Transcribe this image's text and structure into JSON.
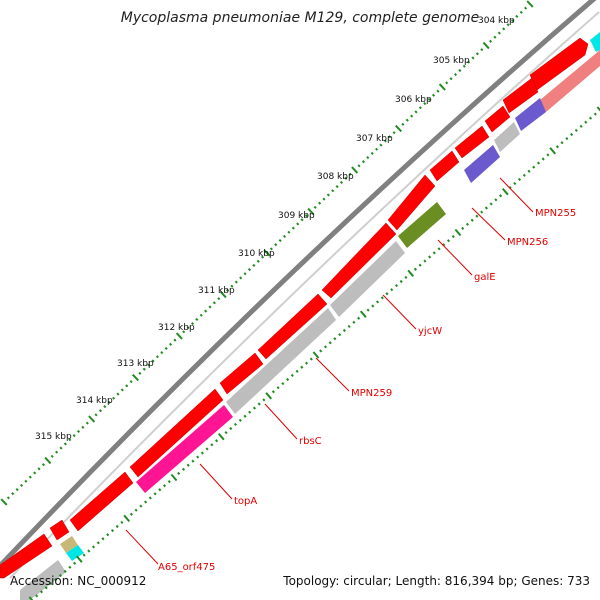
{
  "title": "Mycoplasma pneumoniae M129, complete genome",
  "accession_text": "Accession: NC_000912",
  "summary_text": "Topology: circular; Length: 816,394 bp; Genes: 733",
  "colors": {
    "backbone": "#808080",
    "forward_cds": "#ff0000",
    "reverse_gray": "#bdbdbd",
    "salmon": "#f08080",
    "blue": "#6a5acd",
    "olive": "#6b8e23",
    "magenta": "#ff1493",
    "cyan": "#00e5e5",
    "tan": "#c8b878",
    "ticks": "#228b22",
    "gene_label": "#e00000"
  },
  "kbp_labels": [
    "304 kbp",
    "305 kbp",
    "306 kbp",
    "307 kbp",
    "308 kbp",
    "309 kbp",
    "310 kbp",
    "311 kbp",
    "312 kbp",
    "313 kbp",
    "314 kbp",
    "315 kbp"
  ],
  "gene_labels": [
    "MPN255",
    "MPN256",
    "galE",
    "yjcW",
    "MPN259",
    "rbsC",
    "topA",
    "A65_orf475"
  ]
}
